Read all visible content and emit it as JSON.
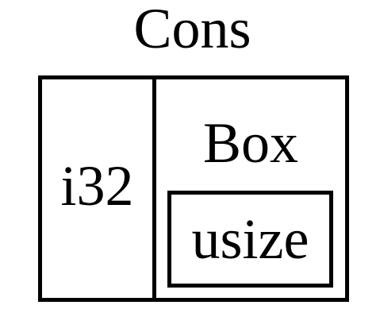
{
  "diagram": {
    "title": "Cons",
    "left_cell": {
      "label": "i32"
    },
    "right_cell": {
      "label": "Box",
      "inner": {
        "label": "usize"
      }
    },
    "colors": {
      "stroke": "#000000",
      "background": "#ffffff"
    }
  }
}
